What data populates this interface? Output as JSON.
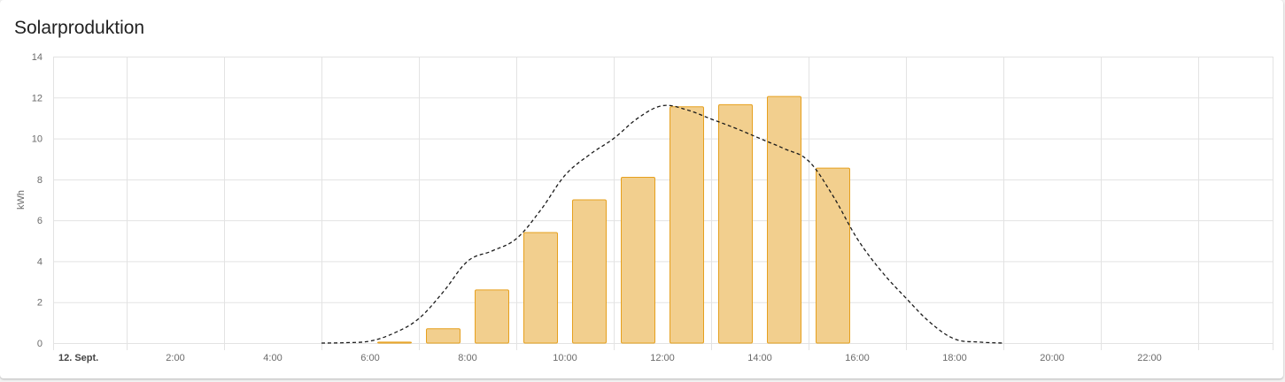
{
  "card": {
    "title": "Solarproduktion"
  },
  "chart_data": {
    "type": "bar",
    "ylabel": "kWh",
    "ylim": [
      0,
      14
    ],
    "yticks": [
      0,
      2,
      4,
      6,
      8,
      10,
      12,
      14
    ],
    "xlim": [
      0,
      24
    ],
    "xticks": [
      {
        "hour": 0,
        "label": "12. Sept."
      },
      {
        "hour": 2,
        "label": "2:00"
      },
      {
        "hour": 4,
        "label": "4:00"
      },
      {
        "hour": 6,
        "label": "6:00"
      },
      {
        "hour": 8,
        "label": "8:00"
      },
      {
        "hour": 10,
        "label": "10:00"
      },
      {
        "hour": 12,
        "label": "12:00"
      },
      {
        "hour": 14,
        "label": "14:00"
      },
      {
        "hour": 16,
        "label": "16:00"
      },
      {
        "hour": 18,
        "label": "18:00"
      },
      {
        "hour": 20,
        "label": "20:00"
      },
      {
        "hour": 22,
        "label": "22:00"
      }
    ],
    "grid": true,
    "series": [
      {
        "type": "bar",
        "color": "#f2cf8e",
        "border_color": "#e6a01e",
        "hours": [
          6,
          7,
          8,
          9,
          10,
          11,
          12,
          13,
          14,
          15
        ],
        "values": [
          0.05,
          0.7,
          2.6,
          5.4,
          7.0,
          8.1,
          11.55,
          11.65,
          12.05,
          8.55
        ]
      },
      {
        "type": "line",
        "style": "dashed",
        "color": "#1a1a1a",
        "hours": [
          5,
          5.5,
          6,
          6.5,
          7,
          7.5,
          8,
          8.5,
          9,
          9.5,
          10,
          10.5,
          11,
          11.5,
          12,
          12.5,
          13,
          13.5,
          14,
          14.5,
          15,
          15.5,
          16,
          16.5,
          17,
          17.5,
          18,
          18.5,
          19
        ],
        "values": [
          0,
          0.02,
          0.1,
          0.5,
          1.2,
          2.5,
          4.0,
          4.5,
          5.1,
          6.5,
          8.2,
          9.2,
          10.0,
          11.0,
          11.6,
          11.4,
          10.95,
          10.5,
          10.0,
          9.5,
          8.9,
          7.2,
          5.1,
          3.5,
          2.2,
          1.0,
          0.2,
          0.05,
          0
        ]
      }
    ]
  }
}
